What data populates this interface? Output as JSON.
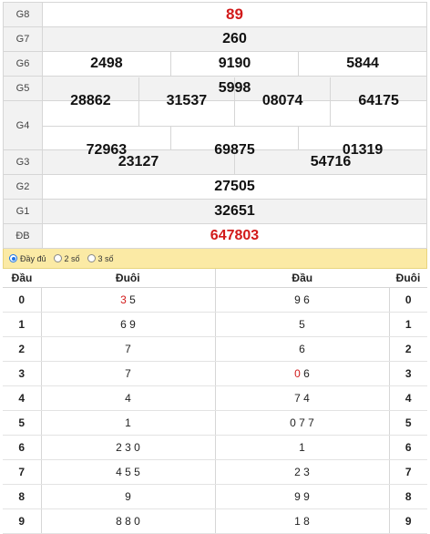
{
  "prizes": {
    "g8": {
      "label": "G8",
      "values": [
        "89"
      ]
    },
    "g7": {
      "label": "G7",
      "values": [
        "260"
      ]
    },
    "g6": {
      "label": "G6",
      "values": [
        "2498",
        "9190",
        "5844"
      ]
    },
    "g5": {
      "label": "G5",
      "values": [
        "5998"
      ]
    },
    "g4": {
      "label": "G4",
      "row1": [
        "28862",
        "31537",
        "08074",
        "64175"
      ],
      "row2": [
        "72963",
        "69875",
        "01319"
      ]
    },
    "g3": {
      "label": "G3",
      "values": [
        "23127",
        "54716"
      ]
    },
    "g2": {
      "label": "G2",
      "values": [
        "27505"
      ]
    },
    "g1": {
      "label": "G1",
      "values": [
        "32651"
      ]
    },
    "db": {
      "label": "ĐB",
      "values": [
        "647803"
      ]
    }
  },
  "options": {
    "full": "Đầy đủ",
    "two": "2 số",
    "three": "3 số",
    "selected": "full"
  },
  "loto": {
    "headers": {
      "dau1": "Đầu",
      "duoi1": "Đuôi",
      "dau2": "Đầu",
      "duoi2": "Đuôi"
    },
    "rows": [
      {
        "head": "0",
        "tails_pre": "",
        "tails_red": "3",
        "tails_post": " 5",
        "heads_pre": "",
        "heads_red": "",
        "heads_post": "9 6",
        "tail": "0"
      },
      {
        "head": "1",
        "tails_pre": "6 9",
        "tails_red": "",
        "tails_post": "",
        "heads_pre": "5",
        "heads_red": "",
        "heads_post": "",
        "tail": "1"
      },
      {
        "head": "2",
        "tails_pre": "7",
        "tails_red": "",
        "tails_post": "",
        "heads_pre": "6",
        "heads_red": "",
        "heads_post": "",
        "tail": "2"
      },
      {
        "head": "3",
        "tails_pre": "7",
        "tails_red": "",
        "tails_post": "",
        "heads_pre": "",
        "heads_red": "0",
        "heads_post": " 6",
        "tail": "3"
      },
      {
        "head": "4",
        "tails_pre": "4",
        "tails_red": "",
        "tails_post": "",
        "heads_pre": "7 4",
        "heads_red": "",
        "heads_post": "",
        "tail": "4"
      },
      {
        "head": "5",
        "tails_pre": "1",
        "tails_red": "",
        "tails_post": "",
        "heads_pre": "0 7 7",
        "heads_red": "",
        "heads_post": "",
        "tail": "5"
      },
      {
        "head": "6",
        "tails_pre": "2 3 0",
        "tails_red": "",
        "tails_post": "",
        "heads_pre": "1",
        "heads_red": "",
        "heads_post": "",
        "tail": "6"
      },
      {
        "head": "7",
        "tails_pre": "4 5 5",
        "tails_red": "",
        "tails_post": "",
        "heads_pre": "2 3",
        "heads_red": "",
        "heads_post": "",
        "tail": "7"
      },
      {
        "head": "8",
        "tails_pre": "9",
        "tails_red": "",
        "tails_post": "",
        "heads_pre": "9 9",
        "heads_red": "",
        "heads_post": "",
        "tail": "8"
      },
      {
        "head": "9",
        "tails_pre": "8 8 0",
        "tails_red": "",
        "tails_post": "",
        "heads_pre": "1 8",
        "heads_red": "",
        "heads_post": "",
        "tail": "9"
      }
    ]
  },
  "colors": {
    "accent_red": "#d21a1a",
    "option_bar": "#fbeaa5",
    "label_bg": "#f2f2f2"
  }
}
